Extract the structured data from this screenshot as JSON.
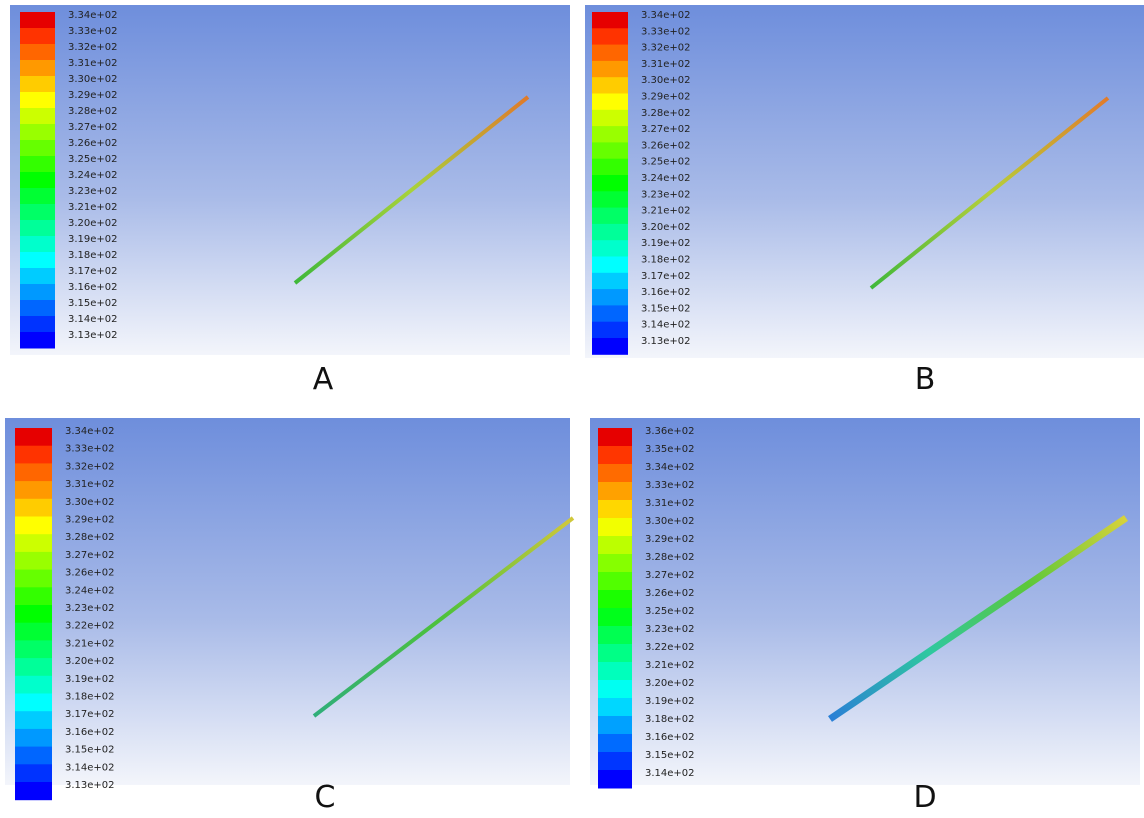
{
  "panels": [
    {
      "label": "A",
      "legend": [
        "3.34e+02",
        "3.33e+02",
        "3.32e+02",
        "3.31e+02",
        "3.30e+02",
        "3.29e+02",
        "3.28e+02",
        "3.27e+02",
        "3.26e+02",
        "3.25e+02",
        "3.24e+02",
        "3.23e+02",
        "3.21e+02",
        "3.20e+02",
        "3.19e+02",
        "3.18e+02",
        "3.17e+02",
        "3.16e+02",
        "3.15e+02",
        "3.14e+02",
        "3.13e+02"
      ]
    },
    {
      "label": "B",
      "legend": [
        "3.34e+02",
        "3.33e+02",
        "3.32e+02",
        "3.31e+02",
        "3.30e+02",
        "3.29e+02",
        "3.28e+02",
        "3.27e+02",
        "3.26e+02",
        "3.25e+02",
        "3.24e+02",
        "3.23e+02",
        "3.21e+02",
        "3.20e+02",
        "3.19e+02",
        "3.18e+02",
        "3.17e+02",
        "3.16e+02",
        "3.15e+02",
        "3.14e+02",
        "3.13e+02"
      ]
    },
    {
      "label": "C",
      "legend": [
        "3.34e+02",
        "3.33e+02",
        "3.32e+02",
        "3.31e+02",
        "3.30e+02",
        "3.29e+02",
        "3.28e+02",
        "3.27e+02",
        "3.26e+02",
        "3.24e+02",
        "3.23e+02",
        "3.22e+02",
        "3.21e+02",
        "3.20e+02",
        "3.19e+02",
        "3.18e+02",
        "3.17e+02",
        "3.16e+02",
        "3.15e+02",
        "3.14e+02",
        "3.13e+02"
      ]
    },
    {
      "label": "D",
      "legend": [
        "3.36e+02",
        "3.35e+02",
        "3.34e+02",
        "3.33e+02",
        "3.31e+02",
        "3.30e+02",
        "3.29e+02",
        "3.28e+02",
        "3.27e+02",
        "3.26e+02",
        "3.25e+02",
        "3.23e+02",
        "3.22e+02",
        "3.21e+02",
        "3.20e+02",
        "3.19e+02",
        "3.18e+02",
        "3.16e+02",
        "3.15e+02",
        "3.14e+02"
      ]
    }
  ]
}
